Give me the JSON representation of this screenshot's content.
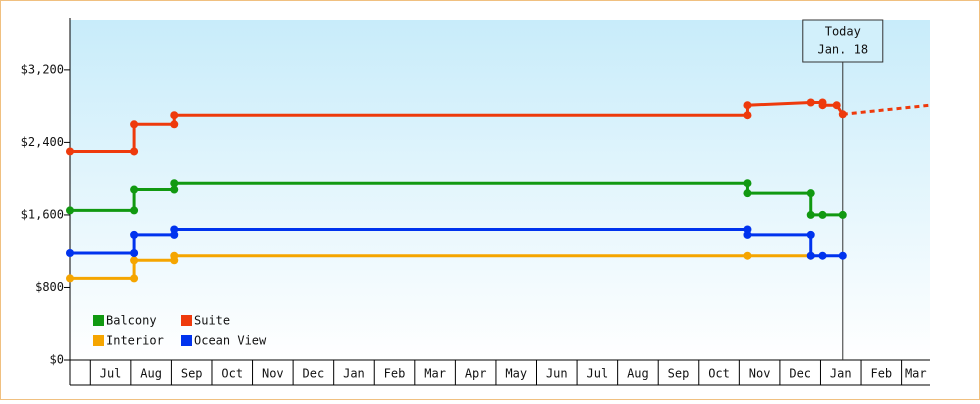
{
  "chart_data": {
    "type": "line",
    "categories": [
      "Jul",
      "Aug",
      "Sep",
      "Oct",
      "Nov",
      "Dec",
      "Jan",
      "Feb",
      "Mar",
      "Apr",
      "May",
      "Jun",
      "Jul",
      "Aug",
      "Sep",
      "Oct",
      "Nov",
      "Dec",
      "Jan",
      "Feb",
      "Mar"
    ],
    "xlim": [
      -0.5,
      20.7
    ],
    "ylim": [
      0,
      3750
    ],
    "yticks": [
      {
        "value": 0,
        "label": "$0"
      },
      {
        "value": 800,
        "label": "$800"
      },
      {
        "value": 1600,
        "label": "$1,600"
      },
      {
        "value": 2400,
        "label": "$2,400"
      },
      {
        "value": 3200,
        "label": "$3,200"
      }
    ],
    "series": [
      {
        "name": "Balcony",
        "color": "#119911",
        "x": [
          -0.5,
          1.08,
          1.08,
          2.07,
          2.07,
          16.2,
          16.2,
          17.76,
          17.76,
          18.05,
          18.55
        ],
        "values": [
          1650,
          1650,
          1880,
          1880,
          1950,
          1950,
          1840,
          1840,
          1600,
          1600,
          1600
        ]
      },
      {
        "name": "Suite",
        "color": "#ee3a0c",
        "x": [
          -0.5,
          1.08,
          1.08,
          2.07,
          2.07,
          16.2,
          16.2,
          17.76,
          18.05,
          18.05,
          18.4,
          18.55
        ],
        "values": [
          2300,
          2300,
          2600,
          2600,
          2700,
          2700,
          2810,
          2840,
          2840,
          2810,
          2810,
          2710
        ]
      },
      {
        "name": "Interior",
        "color": "#f5a500",
        "x": [
          -0.5,
          1.08,
          1.08,
          2.07,
          2.07,
          16.2,
          17.76
        ],
        "values": [
          900,
          900,
          1100,
          1100,
          1150,
          1150,
          1150
        ]
      },
      {
        "name": "Ocean View",
        "color": "#0033ee",
        "x": [
          -0.5,
          1.08,
          1.08,
          2.07,
          2.07,
          16.2,
          16.2,
          17.76,
          17.76,
          18.05,
          18.55
        ],
        "values": [
          1180,
          1180,
          1380,
          1380,
          1440,
          1440,
          1380,
          1380,
          1150,
          1150,
          1150
        ]
      }
    ],
    "projection": {
      "color": "#ee3a0c",
      "x": [
        18.55,
        20.7
      ],
      "values": [
        2710,
        2810
      ]
    },
    "today": {
      "x": 18.55,
      "label": "Today",
      "date": "Jan. 18"
    }
  }
}
